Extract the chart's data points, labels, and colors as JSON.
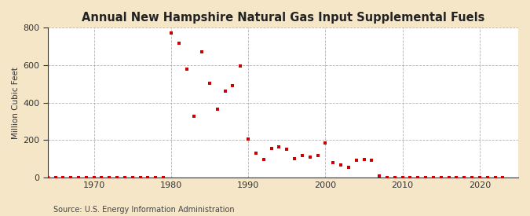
{
  "title": "Annual New Hampshire Natural Gas Input Supplemental Fuels",
  "ylabel": "Million Cubic Feet",
  "source": "Source: U.S. Energy Information Administration",
  "figure_bg": "#f5e6c8",
  "plot_bg": "#ffffff",
  "marker_color": "#cc0000",
  "marker": "s",
  "marker_size": 3.5,
  "xlim": [
    1964,
    2025
  ],
  "ylim": [
    0,
    800
  ],
  "yticks": [
    0,
    200,
    400,
    600,
    800
  ],
  "xticks": [
    1970,
    1980,
    1990,
    2000,
    2010,
    2020
  ],
  "data": {
    "1964": 0,
    "1965": 0,
    "1966": 0,
    "1967": 0,
    "1968": 0,
    "1969": 0,
    "1970": 0,
    "1971": 0,
    "1972": 0,
    "1973": 0,
    "1974": 0,
    "1975": 0,
    "1976": 0,
    "1977": 0,
    "1978": 0,
    "1979": 0,
    "1980": 770,
    "1981": 718,
    "1982": 580,
    "1983": 325,
    "1984": 670,
    "1985": 505,
    "1986": 365,
    "1987": 460,
    "1988": 490,
    "1989": 595,
    "1990": 205,
    "1991": 130,
    "1992": 95,
    "1993": 155,
    "1994": 165,
    "1995": 150,
    "1996": 100,
    "1997": 115,
    "1998": 110,
    "1999": 115,
    "2000": 185,
    "2001": 80,
    "2002": 65,
    "2003": 55,
    "2004": 90,
    "2005": 95,
    "2006": 90,
    "2007": 10,
    "2008": 0,
    "2009": 0,
    "2010": 0,
    "2011": 0,
    "2012": 0,
    "2013": 0,
    "2014": 0,
    "2015": 0,
    "2016": 0,
    "2017": 0,
    "2018": 0,
    "2019": 0,
    "2020": 0,
    "2021": 0,
    "2022": 0,
    "2023": 0
  }
}
